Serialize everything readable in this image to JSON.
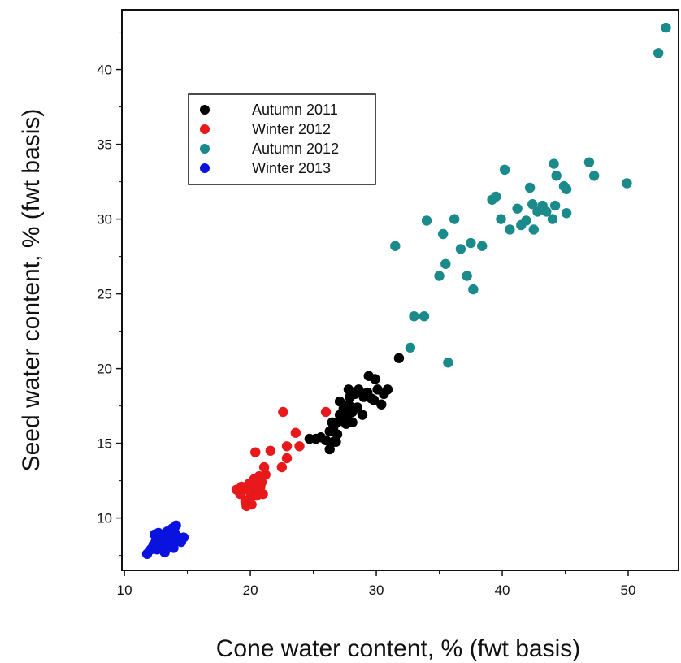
{
  "chart_data": {
    "type": "scatter",
    "xlabel": "Cone water content, % (fwt basis)",
    "ylabel": "Seed water content, % (fwt basis)",
    "xlim": [
      9.8,
      54
    ],
    "ylim": [
      6.5,
      44
    ],
    "xticks": [
      "10",
      "20",
      "30",
      "40",
      "50"
    ],
    "yticks": [
      "10",
      "15",
      "20",
      "25",
      "30",
      "35",
      "40"
    ],
    "grid": false,
    "legend_position": "top-left",
    "series": [
      {
        "name": "Autumn 2011",
        "color": "#000000",
        "points": [
          [
            24.7,
            15.3
          ],
          [
            25.2,
            15.3
          ],
          [
            25.6,
            15.4
          ],
          [
            26.0,
            15.2
          ],
          [
            26.3,
            14.6
          ],
          [
            26.6,
            15.1
          ],
          [
            26.9,
            15.6
          ],
          [
            26.3,
            15.8
          ],
          [
            26.6,
            16.1
          ],
          [
            26.9,
            16.4
          ],
          [
            27.3,
            16.6
          ],
          [
            27.1,
            16.9
          ],
          [
            27.6,
            16.3
          ],
          [
            27.4,
            17.3
          ],
          [
            27.1,
            17.8
          ],
          [
            27.8,
            17.6
          ],
          [
            28.1,
            17.1
          ],
          [
            27.9,
            18.1
          ],
          [
            28.3,
            18.3
          ],
          [
            27.8,
            18.6
          ],
          [
            28.6,
            18.6
          ],
          [
            29.0,
            18.1
          ],
          [
            29.3,
            18.4
          ],
          [
            29.6,
            18.0
          ],
          [
            29.4,
            19.5
          ],
          [
            29.9,
            19.3
          ],
          [
            30.1,
            18.6
          ],
          [
            30.6,
            18.3
          ],
          [
            30.9,
            18.6
          ],
          [
            30.4,
            17.6
          ],
          [
            29.8,
            17.9
          ],
          [
            28.5,
            17.4
          ],
          [
            28.9,
            16.9
          ],
          [
            28.1,
            16.4
          ],
          [
            27.7,
            16.8
          ],
          [
            26.5,
            16.4
          ],
          [
            26.8,
            15.1
          ],
          [
            31.8,
            20.7
          ]
        ]
      },
      {
        "name": "Winter 2012",
        "color": "#e8191b",
        "points": [
          [
            18.9,
            11.9
          ],
          [
            19.2,
            11.6
          ],
          [
            19.5,
            11.9
          ],
          [
            19.7,
            12.1
          ],
          [
            20.0,
            11.4
          ],
          [
            20.2,
            11.9
          ],
          [
            20.4,
            12.3
          ],
          [
            20.6,
            11.9
          ],
          [
            20.9,
            12.4
          ],
          [
            21.0,
            11.6
          ],
          [
            21.2,
            12.9
          ],
          [
            20.7,
            12.8
          ],
          [
            20.3,
            12.6
          ],
          [
            19.9,
            12.3
          ],
          [
            19.6,
            11.1
          ],
          [
            20.1,
            10.9
          ],
          [
            19.7,
            10.8
          ],
          [
            20.5,
            11.5
          ],
          [
            21.1,
            13.4
          ],
          [
            20.4,
            14.4
          ],
          [
            21.6,
            14.5
          ],
          [
            22.5,
            13.4
          ],
          [
            22.9,
            14.0
          ],
          [
            22.9,
            14.8
          ],
          [
            23.6,
            15.7
          ],
          [
            23.9,
            14.8
          ],
          [
            22.6,
            17.1
          ],
          [
            26.0,
            17.1
          ],
          [
            19.3,
            12.1
          ],
          [
            20.8,
            12.1
          ]
        ]
      },
      {
        "name": "Autumn 2012",
        "color": "#1a8a8a",
        "points": [
          [
            31.5,
            28.2
          ],
          [
            32.7,
            21.4
          ],
          [
            33.0,
            23.5
          ],
          [
            33.8,
            23.5
          ],
          [
            34.0,
            29.9
          ],
          [
            35.0,
            26.2
          ],
          [
            35.3,
            29.0
          ],
          [
            35.5,
            27.0
          ],
          [
            35.7,
            20.4
          ],
          [
            36.2,
            30.0
          ],
          [
            36.7,
            28.0
          ],
          [
            37.2,
            26.2
          ],
          [
            37.5,
            28.4
          ],
          [
            37.7,
            25.3
          ],
          [
            38.4,
            28.2
          ],
          [
            39.2,
            31.3
          ],
          [
            39.5,
            31.5
          ],
          [
            39.9,
            30.0
          ],
          [
            40.2,
            33.3
          ],
          [
            40.6,
            29.3
          ],
          [
            41.2,
            30.7
          ],
          [
            41.5,
            29.6
          ],
          [
            41.9,
            29.9
          ],
          [
            42.2,
            32.1
          ],
          [
            42.4,
            31.0
          ],
          [
            42.5,
            29.3
          ],
          [
            42.8,
            30.5
          ],
          [
            43.2,
            30.9
          ],
          [
            43.5,
            30.5
          ],
          [
            44.0,
            30.0
          ],
          [
            44.2,
            30.9
          ],
          [
            44.1,
            33.7
          ],
          [
            44.3,
            32.9
          ],
          [
            44.9,
            32.2
          ],
          [
            45.1,
            32.0
          ],
          [
            45.1,
            30.4
          ],
          [
            46.9,
            33.8
          ],
          [
            47.3,
            32.9
          ],
          [
            49.9,
            32.4
          ],
          [
            52.4,
            41.1
          ],
          [
            53.0,
            42.8
          ]
        ]
      },
      {
        "name": "Winter 2013",
        "color": "#0a12e0",
        "points": [
          [
            11.8,
            7.6
          ],
          [
            12.1,
            7.9
          ],
          [
            12.3,
            8.2
          ],
          [
            12.5,
            8.5
          ],
          [
            12.6,
            7.9
          ],
          [
            12.8,
            8.7
          ],
          [
            12.9,
            8.3
          ],
          [
            13.0,
            8.0
          ],
          [
            13.1,
            8.9
          ],
          [
            13.3,
            8.6
          ],
          [
            13.4,
            9.1
          ],
          [
            13.5,
            8.4
          ],
          [
            13.6,
            8.8
          ],
          [
            13.7,
            8.1
          ],
          [
            13.8,
            9.3
          ],
          [
            13.9,
            8.6
          ],
          [
            14.0,
            9.0
          ],
          [
            14.1,
            9.5
          ],
          [
            14.3,
            8.7
          ],
          [
            14.5,
            8.4
          ],
          [
            14.7,
            8.7
          ],
          [
            12.7,
            9.0
          ],
          [
            13.2,
            7.7
          ],
          [
            12.4,
            8.9
          ],
          [
            13.9,
            8.0
          ]
        ]
      }
    ]
  }
}
